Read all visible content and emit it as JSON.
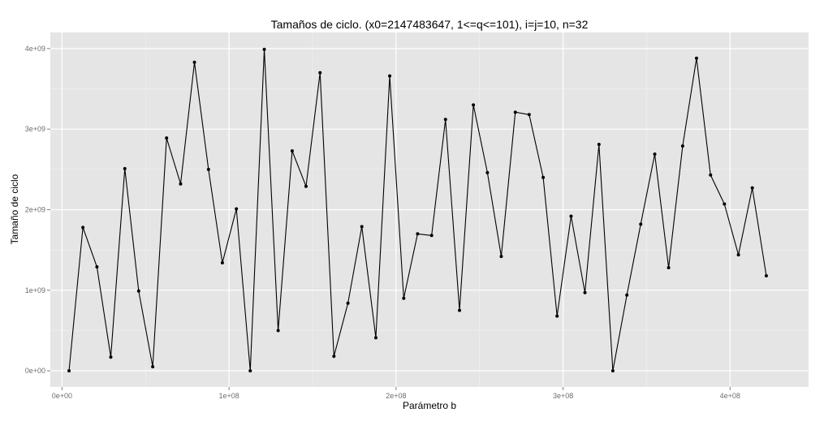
{
  "chart_data": {
    "type": "line",
    "title": "Tamaños de ciclo. (x0=2147483647, 1<=q<=101), i=j=10, n=32",
    "xlabel": "Parámetro b",
    "ylabel": "Tamaño de ciclo",
    "xlim": [
      -7000000,
      447000000
    ],
    "ylim": [
      -200000000,
      4200000000
    ],
    "x_ticks": [
      0,
      100000000,
      200000000,
      300000000,
      400000000
    ],
    "x_tick_labels": [
      "0e+00",
      "1e+08",
      "2e+08",
      "3e+08",
      "4e+08"
    ],
    "y_ticks": [
      0,
      1000000000,
      2000000000,
      3000000000,
      4000000000
    ],
    "y_tick_labels": [
      "0e+00",
      "1e+09",
      "2e+09",
      "3e+09",
      "4e+09"
    ],
    "grid": true,
    "legend": "none",
    "colors": {
      "panel": "#e5e5e5",
      "grid_major": "#ffffff",
      "grid_minor": "#f2f2f2",
      "line": "#000000",
      "point": "#000000"
    },
    "series": [
      {
        "x": [
          4200000,
          12500000,
          20900000,
          29200000,
          37600000,
          45900000,
          54300000,
          62600000,
          71000000,
          79300000,
          87700000,
          96000000,
          104400000,
          112700000,
          121100000,
          129400000,
          137800000,
          146100000,
          154500000,
          162800000,
          171200000,
          179500000,
          187900000,
          196200000,
          204600000,
          212900000,
          221300000,
          229600000,
          238000000,
          246300000,
          254700000,
          263000000,
          271400000,
          279700000,
          288100000,
          296400000,
          304800000,
          313100000,
          321500000,
          329800000,
          338200000,
          346500000,
          354900000,
          363200000,
          371600000,
          379900000,
          388300000,
          396600000,
          405000000,
          413300000,
          421700000
        ],
        "values": [
          0,
          1780000000,
          1290000000,
          170000000,
          2510000000,
          990000000,
          50000000,
          2890000000,
          2320000000,
          3830000000,
          2500000000,
          1340000000,
          2010000000,
          0,
          3990000000,
          500000000,
          2730000000,
          2290000000,
          3700000000,
          180000000,
          840000000,
          1790000000,
          410000000,
          3660000000,
          900000000,
          1700000000,
          1680000000,
          3120000000,
          750000000,
          3300000000,
          2460000000,
          1420000000,
          3210000000,
          3180000000,
          2400000000,
          680000000,
          1920000000,
          970000000,
          2810000000,
          0,
          940000000,
          1820000000,
          2690000000,
          1280000000,
          2790000000,
          3880000000,
          2430000000,
          2070000000,
          1440000000,
          2270000000,
          1180000000
        ]
      }
    ]
  }
}
